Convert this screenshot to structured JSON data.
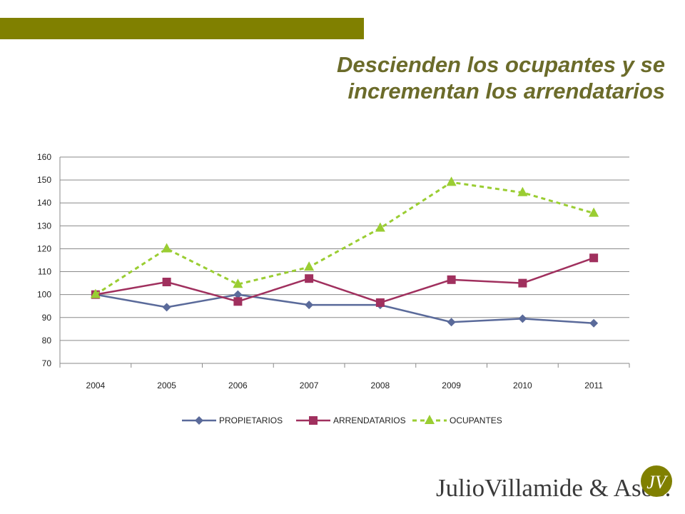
{
  "slide": {
    "title_line1": "Descienden los ocupantes y se",
    "title_line2": "incrementan los arrendatarios",
    "logo_text": "JulioVillamide & Asoc.",
    "logo_monogram": "JV",
    "accent_color": "#808000",
    "title_color": "#6b6b2a"
  },
  "chart_data": {
    "type": "line",
    "categories": [
      "2004",
      "2005",
      "2006",
      "2007",
      "2008",
      "2009",
      "2010",
      "2011"
    ],
    "ylim": [
      70,
      160
    ],
    "yticks": [
      "160",
      "150",
      "140",
      "130",
      "120",
      "110",
      "100",
      "90",
      "80",
      "70"
    ],
    "grid": true,
    "legend": "bottom",
    "series": [
      {
        "name": "PROPIETARIOS",
        "color": "#5a6a9a",
        "marker": "diamond",
        "dash": "solid",
        "values": [
          100,
          94.5,
          100,
          95.5,
          95.5,
          88,
          89.5,
          87.5
        ]
      },
      {
        "name": "ARRENDATARIOS",
        "color": "#a0305e",
        "marker": "square",
        "dash": "solid",
        "values": [
          100,
          105.5,
          97,
          107,
          96.5,
          106.5,
          105,
          116
        ]
      },
      {
        "name": "OCUPANTES",
        "color": "#9acd32",
        "marker": "triangle",
        "dash": "dashed",
        "values": [
          100,
          120,
          104.5,
          112,
          129,
          149,
          144.5,
          135.5
        ]
      }
    ]
  }
}
